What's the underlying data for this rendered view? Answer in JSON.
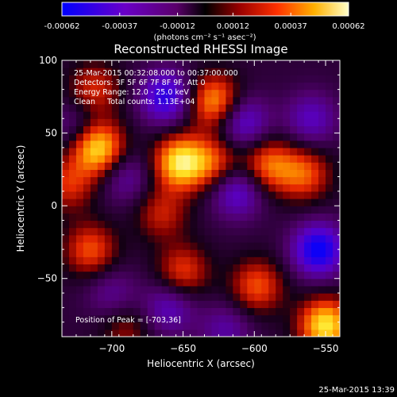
{
  "colorbar": {
    "tick_labels": [
      "-0.00062",
      "-0.00037",
      "-0.00012",
      "0.00012",
      "0.00037",
      "0.00062"
    ],
    "tick_values": [
      -0.00062,
      -0.00037,
      -0.00012,
      0.00012,
      0.00037,
      0.00062
    ],
    "range": [
      -0.00062,
      0.00062
    ],
    "unit_label": "(photons cm⁻² s⁻¹ asec⁻²)"
  },
  "chart_data": {
    "type": "heatmap",
    "title": "Reconstructed RHESSI Image",
    "xlabel": "Heliocentric X (arcsec)",
    "ylabel": "Heliocentric Y (arcsec)",
    "xlim": [
      -735,
      -540
    ],
    "ylim": [
      -90,
      100
    ],
    "x_ticks": [
      -700,
      -650,
      -600,
      -550
    ],
    "x_tick_labels": [
      "−700",
      "−650",
      "−600",
      "−550"
    ],
    "y_ticks": [
      -50,
      0,
      50,
      100
    ],
    "y_tick_labels": [
      "−50",
      "0",
      "50",
      "100"
    ],
    "colormap": [
      "#0000ff",
      "#4b0082",
      "#8b008b",
      "#000000",
      "#8b0000",
      "#ff4500",
      "#ffa500",
      "#ffff00",
      "#ffffff"
    ],
    "peak_position": [
      -703,
      36
    ],
    "sources": [
      {
        "x": -712,
        "y": 80,
        "intensity": 0.45
      },
      {
        "x": -710,
        "y": 40,
        "intensity": 0.95
      },
      {
        "x": -652,
        "y": 30,
        "intensity": 0.95
      },
      {
        "x": -628,
        "y": 72,
        "intensity": 0.75
      },
      {
        "x": -628,
        "y": 30,
        "intensity": 0.5
      },
      {
        "x": -665,
        "y": -5,
        "intensity": 0.4
      },
      {
        "x": -590,
        "y": 28,
        "intensity": 0.6
      },
      {
        "x": -565,
        "y": 22,
        "intensity": 0.55
      },
      {
        "x": -715,
        "y": -30,
        "intensity": 0.55
      },
      {
        "x": -650,
        "y": -45,
        "intensity": 0.5
      },
      {
        "x": -598,
        "y": -55,
        "intensity": 0.55
      },
      {
        "x": -550,
        "y": -82,
        "intensity": 0.95
      },
      {
        "x": -690,
        "y": -85,
        "intensity": 0.3
      },
      {
        "x": -730,
        "y": 15,
        "intensity": 0.45
      }
    ],
    "negative_sources": [
      {
        "x": -662,
        "y": 75,
        "intensity": -0.7
      },
      {
        "x": -690,
        "y": 20,
        "intensity": -0.35
      },
      {
        "x": -608,
        "y": 58,
        "intensity": -0.55
      },
      {
        "x": -612,
        "y": 10,
        "intensity": -0.55
      },
      {
        "x": -555,
        "y": -30,
        "intensity": -0.85
      },
      {
        "x": -560,
        "y": 60,
        "intensity": -0.45
      },
      {
        "x": -660,
        "y": -70,
        "intensity": -0.45
      },
      {
        "x": -620,
        "y": -85,
        "intensity": -0.35
      },
      {
        "x": -725,
        "y": 55,
        "intensity": -0.3
      },
      {
        "x": -700,
        "y": -60,
        "intensity": -0.3
      }
    ]
  },
  "annotations": {
    "line1": "25-Mar-2015 00:32:08.000 to 00:37:00.000",
    "line2": "Detectors: 3F 5F 6F 7F 8F 9F, Att 0",
    "line3": "Energy Range: 12.0 - 25.0 keV",
    "line4": "Clean     Total counts: 1.13E+04",
    "peak": "Position of Peak = [-703,36]"
  },
  "footer_timestamp": "25-Mar-2015 13:39"
}
